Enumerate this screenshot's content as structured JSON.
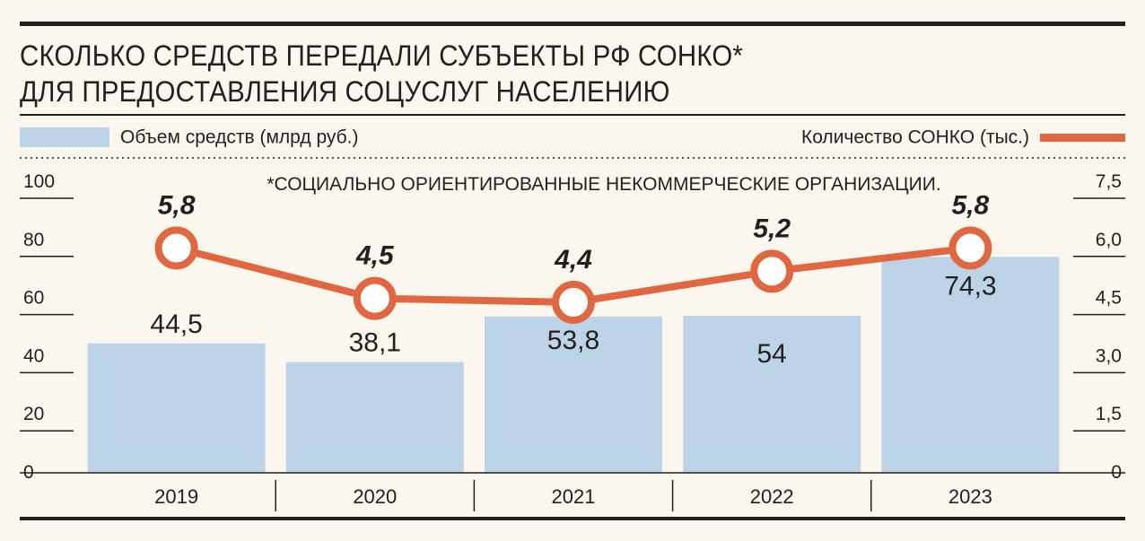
{
  "title": {
    "line1": "СКОЛЬКО СРЕДСТВ ПЕРЕДАЛИ СУБЪЕКТЫ РФ СОНКО*",
    "line2": "ДЛЯ ПРЕДОСТАВЛЕНИЯ СОЦУСЛУГ НАСЕЛЕНИЮ"
  },
  "legend": {
    "bars_label": "Объем средств (млрд руб.)",
    "line_label": "Количество СОНКО (тыс.)"
  },
  "colors": {
    "bar": "#bdd4e8",
    "line": "#e0673f",
    "text": "#231f20",
    "background": "#fbf7ee"
  },
  "chart_data": {
    "type": "bar",
    "footnote": "*СОЦИАЛЬНО ОРИЕНТИРОВАННЫЕ НЕКОММЕРЧЕСКИЕ ОРГАНИЗАЦИИ.",
    "categories": [
      "2019",
      "2020",
      "2021",
      "2022",
      "2023"
    ],
    "series": [
      {
        "name": "Объем средств (млрд руб.)",
        "type": "bar",
        "axis": "left",
        "values": [
          44.5,
          38.1,
          53.8,
          54,
          74.3
        ],
        "labels": [
          "44,5",
          "38,1",
          "53,8",
          "54",
          "74,3"
        ]
      },
      {
        "name": "Количество СОНКО (тыс.)",
        "type": "line",
        "axis": "right",
        "values": [
          5.8,
          4.5,
          4.4,
          5.2,
          5.8
        ],
        "labels": [
          "5,8",
          "4,5",
          "4,4",
          "5,2",
          "5,8"
        ]
      }
    ],
    "y_left": {
      "range": [
        0,
        100
      ],
      "ticks": [
        "0",
        "20",
        "40",
        "60",
        "80",
        "100"
      ]
    },
    "y_right": {
      "range": [
        0,
        7.5
      ],
      "ticks": [
        "0",
        "1,5",
        "3,0",
        "4,5",
        "6,0",
        "7,5"
      ]
    },
    "grid": true
  }
}
